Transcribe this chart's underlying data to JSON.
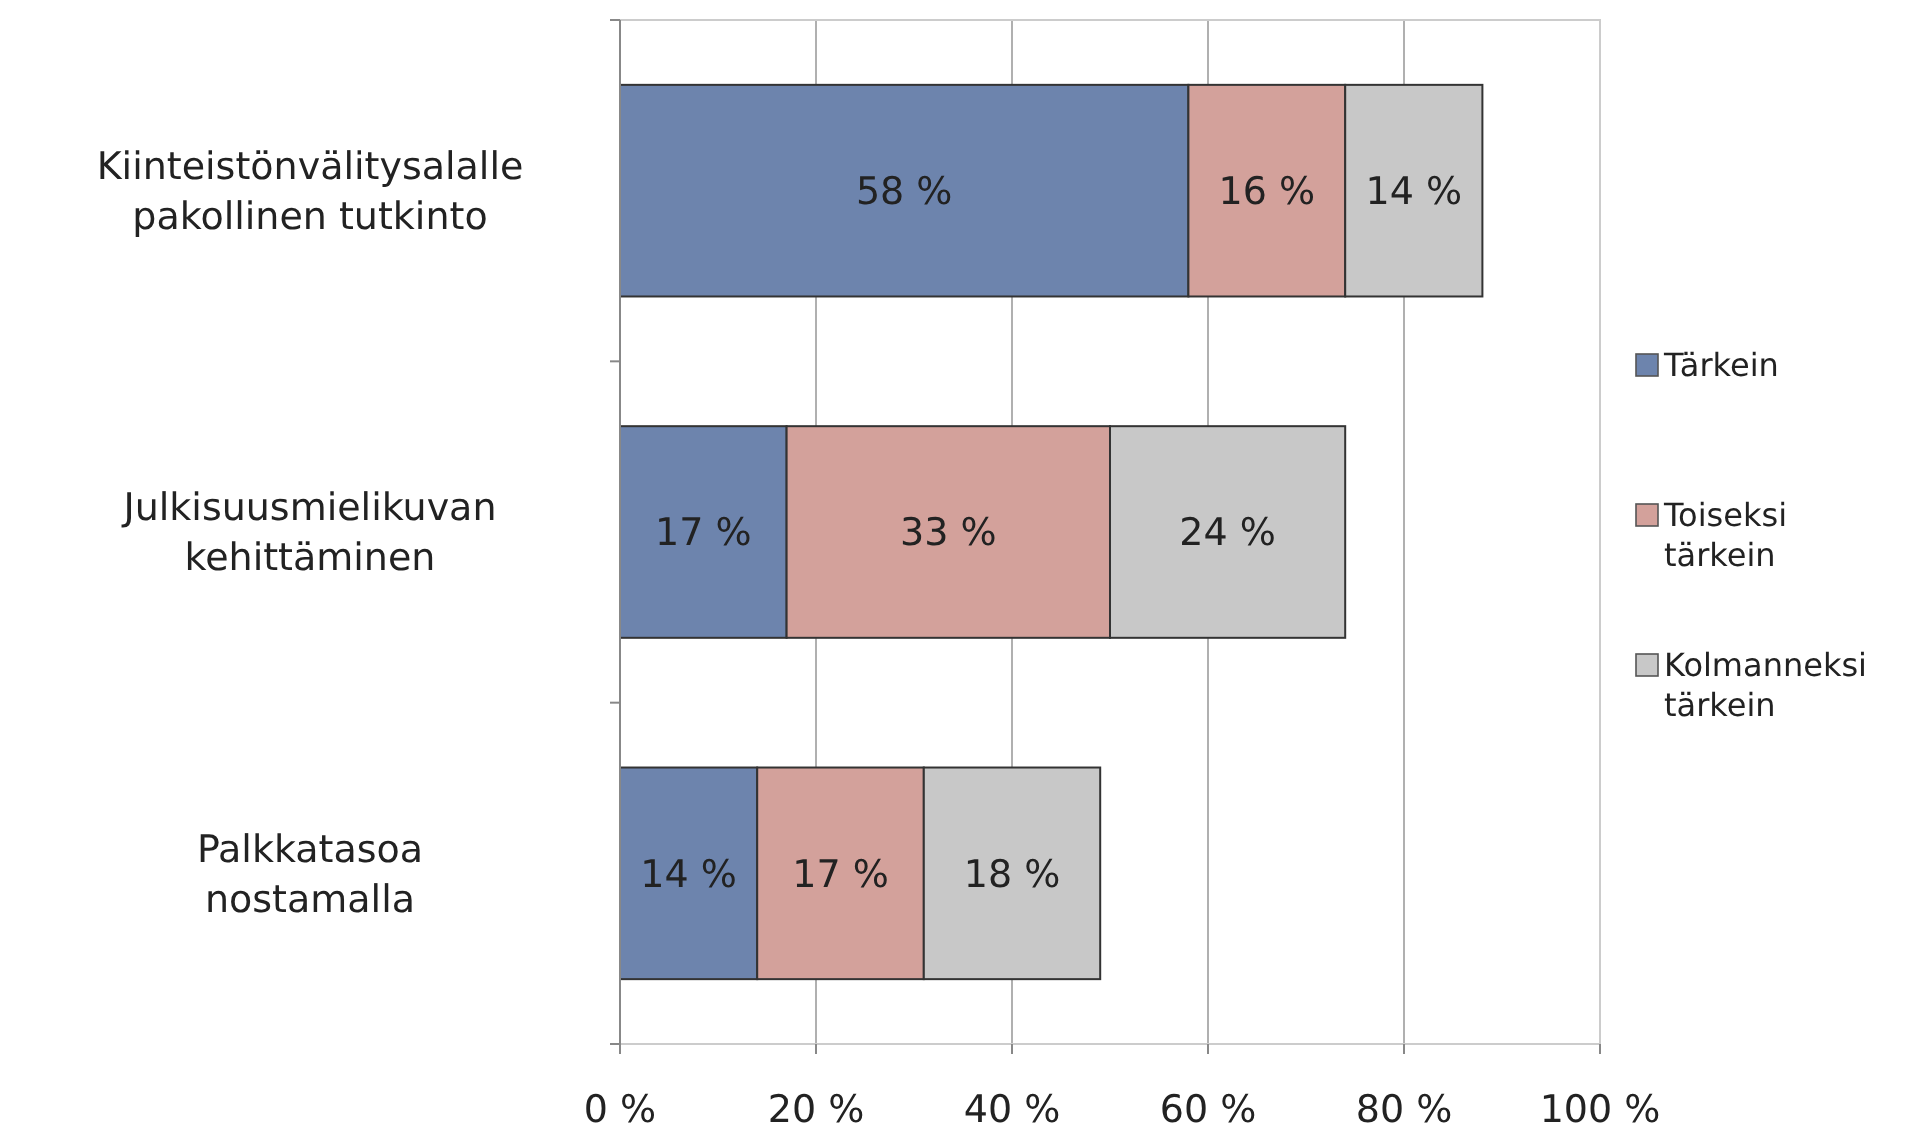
{
  "chart_data": {
    "type": "bar",
    "orientation": "horizontal",
    "stacked": true,
    "categories": [
      "Kiinteistönvälitysalalle pakollinen tutkinto",
      "Julkisuusmielikuvan kehittäminen",
      "Palkkatasoa nostamalla"
    ],
    "series": [
      {
        "name": "Tärkein",
        "color": "#6d84ad",
        "values": [
          58,
          17,
          14
        ],
        "value_labels": [
          "58 %",
          "17 %",
          "14 %"
        ]
      },
      {
        "name": "Toiseksi tärkein",
        "color": "#d3a19b",
        "values": [
          16,
          33,
          17
        ],
        "value_labels": [
          "16 %",
          "33 %",
          "17 %"
        ]
      },
      {
        "name": "Kolmanneksi tärkein",
        "color": "#c8c8c8",
        "values": [
          14,
          24,
          18
        ],
        "value_labels": [
          "14 %",
          "24 %",
          "18 %"
        ]
      }
    ],
    "xlim": [
      0,
      100
    ],
    "xticks": [
      {
        "value": 0,
        "label": "0 %"
      },
      {
        "value": 20,
        "label": "20 %"
      },
      {
        "value": 40,
        "label": "40 %"
      },
      {
        "value": 60,
        "label": "60 %"
      },
      {
        "value": 80,
        "label": "80 %"
      },
      {
        "value": 100,
        "label": "100 %"
      }
    ],
    "grid": "x",
    "legend": "right"
  }
}
